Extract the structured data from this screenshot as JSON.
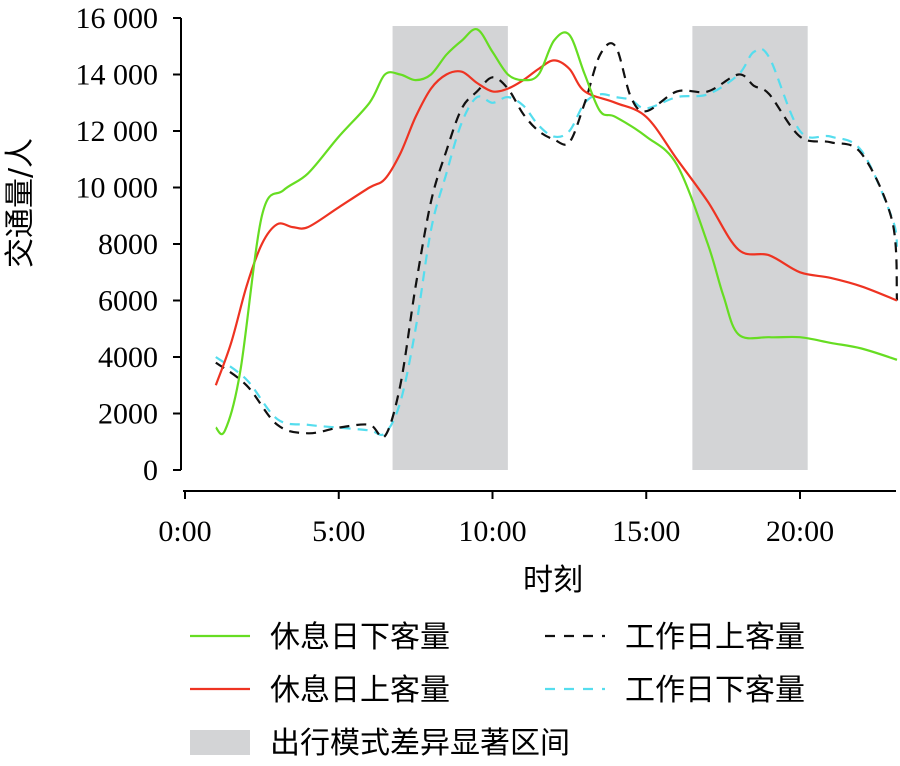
{
  "chart_data": {
    "type": "line",
    "xlabel": "时刻",
    "ylabel": "交通量/人",
    "xlim": [
      0,
      24
    ],
    "ylim": [
      0,
      16000
    ],
    "x_tick_values": [
      0,
      5,
      10,
      15,
      20
    ],
    "x_ticks": [
      "0:00",
      "5:00",
      "10:00",
      "15:00",
      "20:00"
    ],
    "y_tick_values": [
      0,
      2000,
      4000,
      6000,
      8000,
      10000,
      12000,
      14000,
      16000
    ],
    "y_ticks": [
      "0",
      "2000",
      "4000",
      "6000",
      "8000",
      "10 000",
      "12 000",
      "14 000",
      "16 000"
    ],
    "grid": false,
    "legend_position": "bottom",
    "shaded_regions": {
      "label": "出行模式差异显著区间",
      "color": "#d3d4d6",
      "ranges": [
        [
          6.75,
          10.5
        ],
        [
          16.5,
          20.25
        ]
      ]
    },
    "series": [
      {
        "name": "休息日下客量",
        "color": "#66dd22",
        "dash": "solid",
        "x": [
          1,
          1.3,
          1.8,
          2.5,
          3.2,
          4,
          5,
          6,
          6.5,
          7,
          7.5,
          8,
          8.5,
          9,
          9.5,
          10,
          10.5,
          11,
          11.5,
          12,
          12.5,
          13,
          13.5,
          14,
          15,
          16,
          17,
          17.5,
          18,
          19,
          20,
          21,
          22,
          24
        ],
        "values": [
          1500,
          1400,
          3500,
          9000,
          9900,
          10500,
          11800,
          13000,
          14000,
          14000,
          13800,
          14000,
          14700,
          15200,
          15600,
          14800,
          14000,
          13800,
          14000,
          15200,
          15400,
          14000,
          12700,
          12500,
          11800,
          10800,
          8000,
          6200,
          4800,
          4700,
          4700,
          4500,
          4300,
          3900
        ]
      },
      {
        "name": "休息日上客量",
        "color": "#ee3322",
        "dash": "solid",
        "x": [
          1,
          1.5,
          2,
          2.5,
          3,
          3.5,
          4,
          5,
          6,
          6.5,
          7,
          7.5,
          8,
          8.5,
          9,
          9.5,
          10,
          10.5,
          11,
          11.5,
          12,
          12.5,
          13,
          14,
          15,
          16,
          17,
          18,
          19,
          20,
          21,
          22,
          24
        ],
        "values": [
          3000,
          4500,
          6500,
          8000,
          8700,
          8600,
          8600,
          9300,
          10000,
          10300,
          11200,
          12500,
          13500,
          14000,
          14100,
          13700,
          13400,
          13500,
          13800,
          14200,
          14500,
          14200,
          13400,
          13000,
          12500,
          11000,
          9500,
          7800,
          7600,
          7000,
          6800,
          6500,
          6000
        ]
      },
      {
        "name": "工作日上客量",
        "color": "#111111",
        "dash": "dashed",
        "x": [
          1,
          2,
          3,
          4,
          5,
          6,
          6.5,
          7,
          7.5,
          8,
          8.5,
          9,
          9.5,
          10,
          10.5,
          11,
          11.5,
          12,
          12.5,
          13,
          13.5,
          14,
          14.5,
          15,
          16,
          17,
          18,
          18.5,
          19,
          20,
          21,
          22,
          23,
          24
        ],
        "values": [
          3800,
          3000,
          1600,
          1300,
          1500,
          1600,
          1200,
          3000,
          6500,
          9500,
          11300,
          12800,
          13400,
          13900,
          13500,
          12600,
          12000,
          11700,
          11600,
          13000,
          14700,
          15000,
          13200,
          12700,
          13400,
          13400,
          14000,
          13600,
          13300,
          11800,
          11600,
          11200,
          8800,
          6000
        ]
      },
      {
        "name": "工作日下客量",
        "color": "#55ddee",
        "dash": "dashed",
        "x": [
          1,
          2,
          3,
          4,
          5,
          6,
          6.5,
          7,
          7.5,
          8,
          8.5,
          9,
          9.5,
          10,
          10.5,
          11,
          11.5,
          12,
          12.5,
          13,
          13.5,
          14,
          14.5,
          15,
          16,
          17,
          18,
          18.5,
          19,
          20,
          21,
          22,
          23,
          24
        ],
        "values": [
          4000,
          3200,
          1800,
          1600,
          1500,
          1400,
          1300,
          2400,
          5000,
          8500,
          10500,
          12300,
          13200,
          13000,
          13200,
          12900,
          12200,
          11800,
          12000,
          13000,
          13300,
          13200,
          13100,
          12800,
          13200,
          13300,
          14000,
          14800,
          14600,
          12000,
          11800,
          11300,
          8900,
          7900
        ]
      }
    ]
  }
}
